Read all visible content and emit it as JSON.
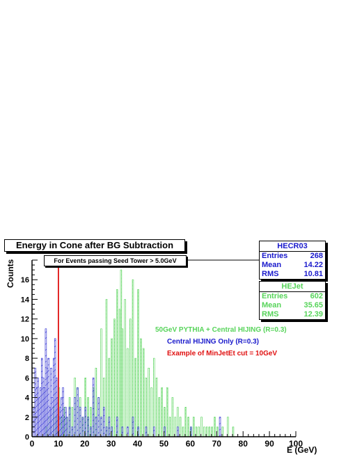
{
  "chart_data": {
    "type": "histogram",
    "title": "Energy in Cone after BG Subtraction",
    "subtitle": "For Events passing Seed Tower > 5.0GeV",
    "xlabel": "E (GeV)",
    "ylabel": "Counts",
    "xlim": [
      0,
      100
    ],
    "ylim": [
      0,
      18
    ],
    "xticks": [
      0,
      10,
      20,
      30,
      40,
      50,
      60,
      70,
      80,
      90,
      100
    ],
    "yticks": [
      0,
      2,
      4,
      6,
      8,
      10,
      12,
      14,
      16
    ],
    "bin_width": 0.5,
    "series": [
      {
        "name": "Central HIJING Only (R=0.3)",
        "color": "#1a1acc",
        "hatch": "diagonal",
        "stats": {
          "name": "HECR03",
          "entries": "268",
          "mean": "14.22",
          "rms": "10.81"
        },
        "x": [
          0.5,
          1,
          1.5,
          2,
          2.5,
          3,
          3.5,
          4,
          4.5,
          5,
          5.5,
          6,
          6.5,
          7,
          7.5,
          8,
          8.5,
          9,
          9.5,
          10,
          10.5,
          11,
          11.5,
          12,
          12.5,
          13,
          14,
          15,
          16,
          17,
          18,
          19,
          20,
          21,
          22,
          23,
          24,
          25,
          26,
          27,
          28,
          29,
          30,
          32,
          34,
          36,
          38,
          40,
          43,
          46,
          50,
          55,
          60,
          71
        ],
        "values": [
          3,
          7,
          5,
          6,
          4,
          5,
          8,
          6,
          5,
          11,
          7,
          8,
          3,
          7,
          4,
          8,
          10,
          6,
          4,
          2,
          3,
          4,
          5,
          2,
          3,
          2,
          3,
          1,
          4,
          5,
          3,
          2,
          3,
          2,
          1,
          6,
          2,
          4,
          2,
          3,
          1,
          2,
          1,
          2,
          1,
          1,
          2,
          1,
          1,
          1,
          1,
          1,
          1,
          2
        ]
      },
      {
        "name": "50GeV PYTHIA + Central HIJING (R=0.3)",
        "color": "#57d45a",
        "hatch": "dotted",
        "stats": {
          "name": "HEJet",
          "entries": "602",
          "mean": "35.65",
          "rms": "12.39"
        },
        "x": [
          5,
          6,
          7,
          8,
          9,
          10,
          11,
          12,
          13,
          14,
          15,
          16,
          17,
          18,
          19,
          20,
          21,
          22,
          23,
          24,
          25,
          26,
          27,
          28,
          29,
          30,
          31,
          32,
          33,
          33.5,
          34,
          35,
          36,
          37,
          38,
          39,
          40,
          41,
          42,
          43,
          44,
          45,
          46,
          47,
          48,
          49,
          50,
          51,
          52,
          53,
          54,
          55,
          56,
          57,
          58,
          59,
          60,
          61,
          62,
          63,
          64,
          65,
          66,
          67,
          68,
          69,
          70,
          72,
          74,
          76
        ],
        "values": [
          1,
          2,
          1,
          3,
          2,
          5,
          2,
          3,
          2,
          4,
          3,
          6,
          5,
          4,
          2,
          6,
          4,
          3,
          5,
          7,
          4,
          11,
          6,
          14,
          8,
          10,
          12,
          15,
          13,
          17,
          11,
          14,
          9,
          12,
          16,
          8,
          15,
          10,
          9,
          6,
          7,
          5,
          8,
          6,
          4,
          5,
          3,
          5,
          2,
          4,
          2,
          3,
          2,
          1,
          3,
          2,
          1,
          2,
          1,
          1,
          2,
          1,
          1,
          1,
          1,
          2,
          1,
          1,
          2,
          1
        ]
      },
      {
        "name": "Example of MinJetEt cut = 10GeV",
        "color": "#e01010",
        "type": "vertical-line",
        "x": 10
      }
    ]
  }
}
